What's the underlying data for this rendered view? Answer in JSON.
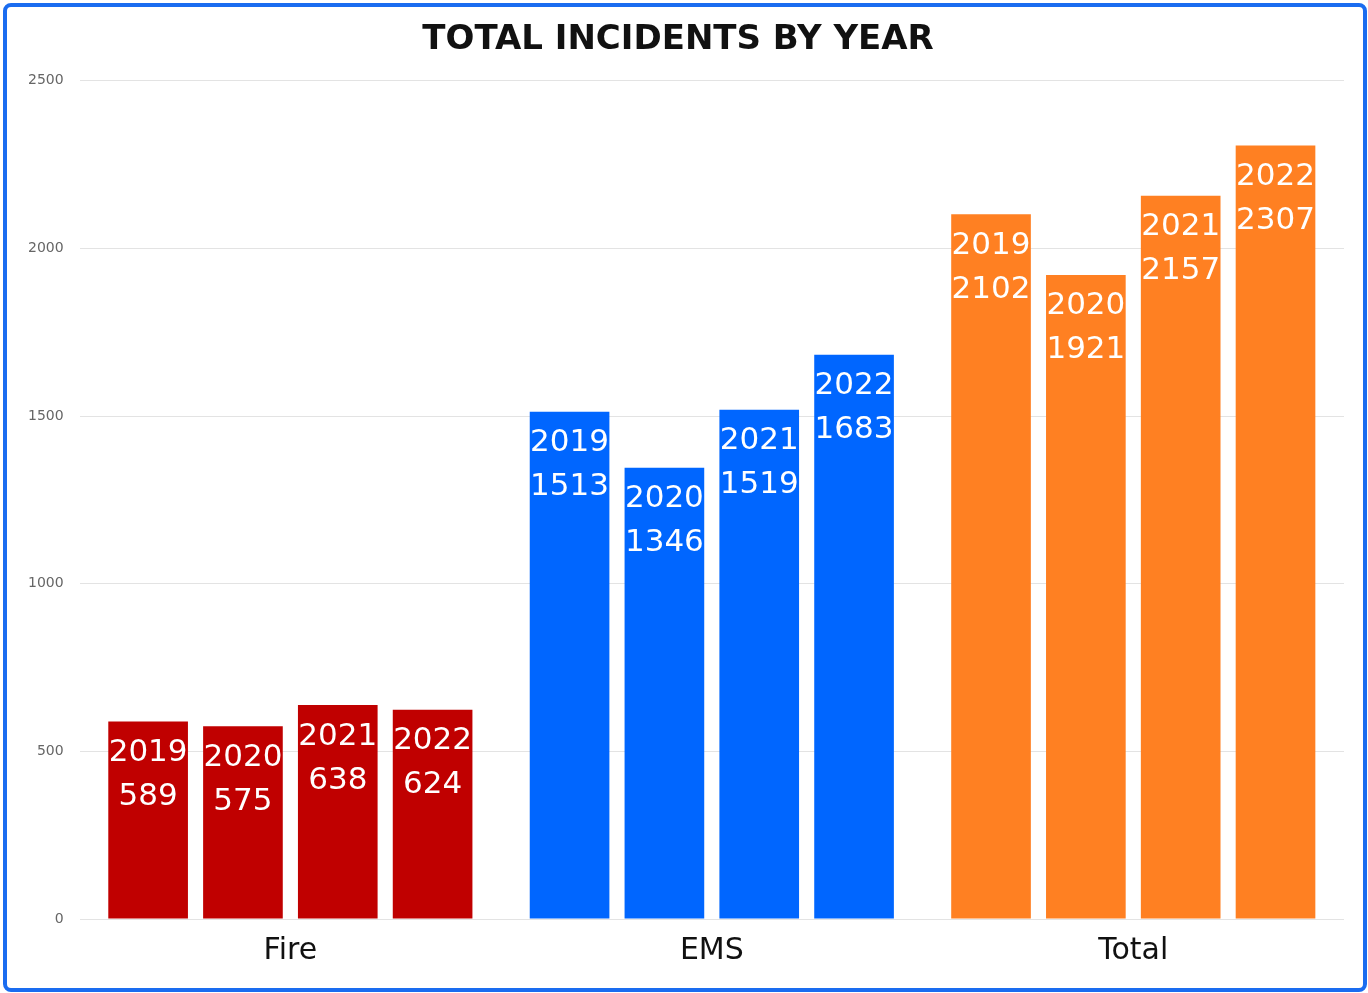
{
  "chart_data": {
    "type": "bar",
    "title": "TOTAL INCIDENTS BY YEAR",
    "categories": [
      "Fire",
      "EMS",
      "Total"
    ],
    "series": [
      {
        "name": "2019",
        "colors": [
          "#c00000",
          "#0066ff",
          "#ff8022"
        ],
        "values": [
          589,
          1513,
          2102
        ]
      },
      {
        "name": "2020",
        "colors": [
          "#c00000",
          "#0066ff",
          "#ff8022"
        ],
        "values": [
          575,
          1346,
          1921
        ]
      },
      {
        "name": "2021",
        "colors": [
          "#c00000",
          "#0066ff",
          "#ff8022"
        ],
        "values": [
          638,
          1519,
          2157
        ]
      },
      {
        "name": "2022",
        "colors": [
          "#c00000",
          "#0066ff",
          "#ff8022"
        ],
        "values": [
          624,
          1683,
          2307
        ]
      }
    ],
    "ylim": [
      0,
      2500
    ],
    "yticks": [
      0,
      500,
      1000,
      1500,
      2000,
      2500
    ],
    "grid": "y",
    "data_labels": true,
    "legend": false
  }
}
